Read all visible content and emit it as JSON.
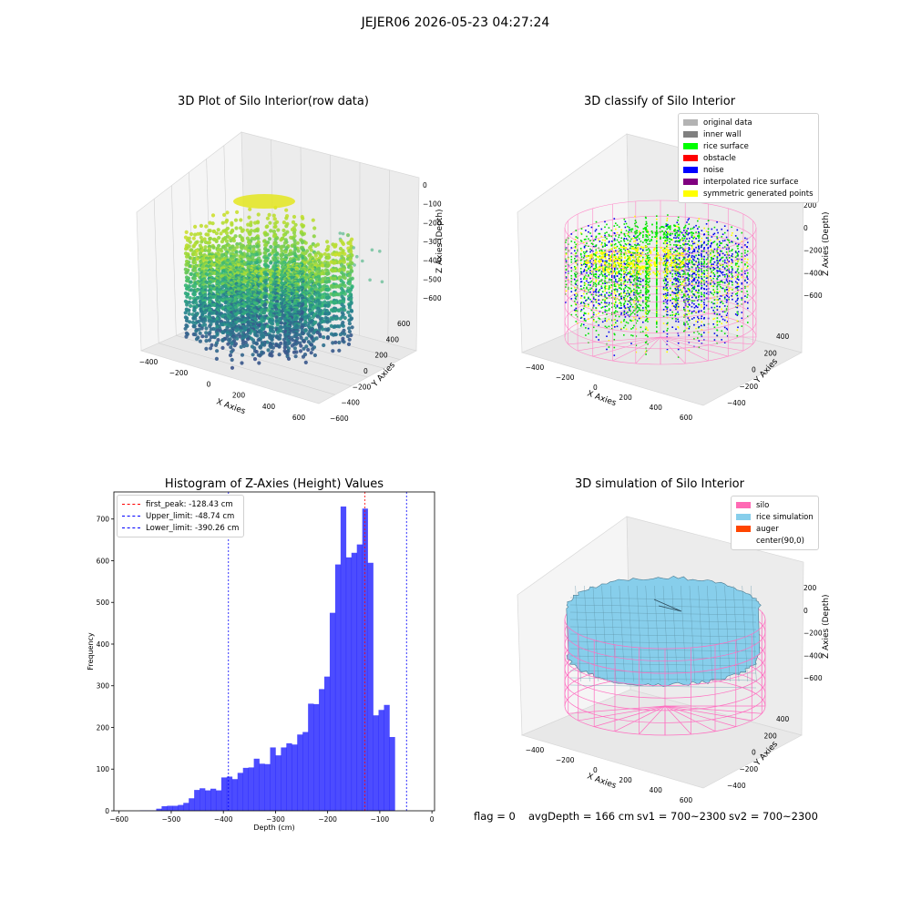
{
  "suptitle": "JEJER06 2026-05-23 04:27:24",
  "status": {
    "flag": "flag = 0",
    "avg_depth": "avgDepth = 166 cm",
    "sv1": "sv1 = 700~2300",
    "sv2": "sv2 = 700~2300"
  },
  "panel_raw": {
    "title": "3D Plot of Silo Interior(row data)",
    "xlabel": "X Axies",
    "ylabel": "Y Axies",
    "zlabel": "Z Axies (Depth)",
    "xticks": [
      "−400",
      "−200",
      "0",
      "200",
      "400",
      "600"
    ],
    "yticks": [
      "600",
      "400",
      "200",
      "0",
      "−200",
      "−400",
      "−600"
    ],
    "zticks": [
      "0",
      "−100",
      "−200",
      "−300",
      "−400",
      "−500",
      "−600"
    ]
  },
  "panel_classify": {
    "title": "3D classify of Silo Interior",
    "xlabel": "X Axies",
    "ylabel": "Y Axies",
    "zlabel": "Z Axies (Depth)",
    "xticks": [
      "−400",
      "−200",
      "0",
      "200",
      "400",
      "600"
    ],
    "yticks": [
      "400",
      "200",
      "0",
      "−200",
      "−400"
    ],
    "zticks": [
      "200",
      "0",
      "−200",
      "−400",
      "−600"
    ],
    "legend": [
      {
        "label": "original data",
        "color": "#b3b3b3"
      },
      {
        "label": "inner wall",
        "color": "#808080"
      },
      {
        "label": "rice surface",
        "color": "#00ff00"
      },
      {
        "label": "obstacle",
        "color": "#ff0000"
      },
      {
        "label": "noise",
        "color": "#0000ff"
      },
      {
        "label": "interpolated rice surface",
        "color": "#800080"
      },
      {
        "label": "symmetric generated points",
        "color": "#ffff00"
      }
    ]
  },
  "panel_sim": {
    "title": "3D simulation of Silo Interior",
    "xlabel": "X Axies",
    "ylabel": "Y Axies",
    "zlabel": "Z Axies (Depth)",
    "xticks": [
      "−400",
      "−200",
      "0",
      "200",
      "400",
      "600"
    ],
    "yticks": [
      "400",
      "200",
      "0",
      "−200",
      "−400"
    ],
    "zticks": [
      "200",
      "0",
      "−200",
      "−400",
      "−600"
    ],
    "legend": [
      {
        "label": "silo",
        "color": "#ff69b4"
      },
      {
        "label": "rice simulation",
        "color": "#87ceeb"
      },
      {
        "label": "auger",
        "color": "#ff4500"
      },
      {
        "label": "center(90,0)",
        "color": ""
      }
    ]
  },
  "chart_data": {
    "type": "bar",
    "title": "Histogram of Z-Axies (Height) Values",
    "xlabel": "Depth (cm)",
    "ylabel": "Frequency",
    "xlim": [
      -610,
      5
    ],
    "ylim": [
      0,
      765
    ],
    "xticks": [
      -600,
      -500,
      -400,
      -300,
      -200,
      -100,
      0
    ],
    "yticks": [
      0,
      100,
      200,
      300,
      400,
      500,
      600,
      700
    ],
    "bar_color": "#0000ff",
    "bin_edges_start": -560,
    "bin_width": 10.4,
    "values": [
      1,
      1,
      1,
      5,
      11,
      12,
      12,
      14,
      19,
      30,
      50,
      54,
      49,
      53,
      49,
      80,
      82,
      76,
      91,
      103,
      104,
      125,
      113,
      112,
      152,
      133,
      152,
      162,
      159,
      183,
      189,
      257,
      256,
      292,
      322,
      475,
      591,
      730,
      608,
      619,
      639,
      725,
      595,
      229,
      242,
      254,
      177
    ],
    "vlines": [
      {
        "label": "first_peak: -128.43 cm",
        "x": -128.43,
        "color": "#ff0000"
      },
      {
        "label": "Upper_limit: -48.74 cm",
        "x": -48.74,
        "color": "#0000ff"
      },
      {
        "label": "Lower_limit: -390.26 cm",
        "x": -390.26,
        "color": "#0000ff"
      }
    ]
  }
}
